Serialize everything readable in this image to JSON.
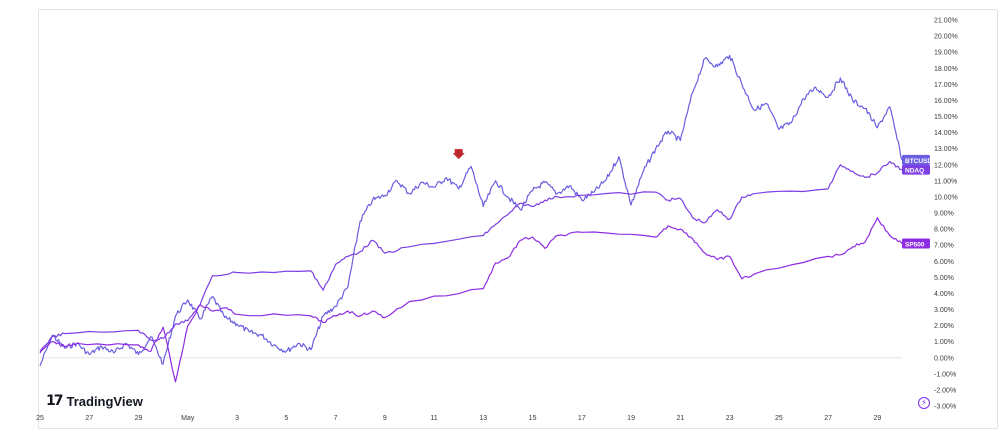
{
  "branding": {
    "logo_mark": "17",
    "logo_text": "TradingView"
  },
  "settings_icon_glyph": "⚡",
  "chart_data": {
    "type": "line",
    "ylim": [
      -3.0,
      21.0
    ],
    "y_ticks": [
      "-3.00%",
      "-2.00%",
      "-1.00%",
      "0.00%",
      "1.00%",
      "2.00%",
      "3.00%",
      "4.00%",
      "5.00%",
      "6.00%",
      "7.00%",
      "8.00%",
      "9.00%",
      "10.00%",
      "11.00%",
      "12.00%",
      "13.00%",
      "14.00%",
      "15.00%",
      "16.00%",
      "17.00%",
      "18.00%",
      "19.00%",
      "20.00%",
      "21.00%"
    ],
    "x_domain": [
      "2024-04-25",
      "2024-05-30"
    ],
    "x_ticks": [
      {
        "date": "2024-04-25",
        "label": "25"
      },
      {
        "date": "2024-04-27",
        "label": "27"
      },
      {
        "date": "2024-04-29",
        "label": "29"
      },
      {
        "date": "2024-05-01",
        "label": "May"
      },
      {
        "date": "2024-05-03",
        "label": "3"
      },
      {
        "date": "2024-05-05",
        "label": "5"
      },
      {
        "date": "2024-05-07",
        "label": "7"
      },
      {
        "date": "2024-05-09",
        "label": "9"
      },
      {
        "date": "2024-05-11",
        "label": "11"
      },
      {
        "date": "2024-05-13",
        "label": "13"
      },
      {
        "date": "2024-05-15",
        "label": "15"
      },
      {
        "date": "2024-05-17",
        "label": "17"
      },
      {
        "date": "2024-05-19",
        "label": "19"
      },
      {
        "date": "2024-05-21",
        "label": "21"
      },
      {
        "date": "2024-05-23",
        "label": "23"
      },
      {
        "date": "2024-05-25",
        "label": "25"
      },
      {
        "date": "2024-05-27",
        "label": "27"
      },
      {
        "date": "2024-05-29",
        "label": "29"
      }
    ],
    "zero_line": 0.0,
    "marker": {
      "date": "2024-05-12",
      "value": 12.6,
      "color": "#c0262d"
    },
    "series": [
      {
        "name": "BTCUSD",
        "color": "#6a5fe0",
        "last_value": 12.3,
        "points": [
          [
            "2024-04-25",
            -0.5
          ],
          [
            "2024-04-25T12:00",
            1.4
          ],
          [
            "2024-04-26",
            0.6
          ],
          [
            "2024-04-26T12:00",
            0.9
          ],
          [
            "2024-04-27",
            0.2
          ],
          [
            "2024-04-27T12:00",
            0.7
          ],
          [
            "2024-04-28",
            0.3
          ],
          [
            "2024-04-28T12:00",
            0.9
          ],
          [
            "2024-04-29",
            0.2
          ],
          [
            "2024-04-29T12:00",
            1.3
          ],
          [
            "2024-04-30",
            -0.4
          ],
          [
            "2024-04-30T12:00",
            2.6
          ],
          [
            "2024-05-01",
            3.6
          ],
          [
            "2024-05-01T12:00",
            2.4
          ],
          [
            "2024-05-02",
            3.8
          ],
          [
            "2024-05-02T12:00",
            2.5
          ],
          [
            "2024-05-03",
            2.1
          ],
          [
            "2024-05-03T12:00",
            1.6
          ],
          [
            "2024-05-04",
            1.4
          ],
          [
            "2024-05-04T12:00",
            0.8
          ],
          [
            "2024-05-05",
            0.4
          ],
          [
            "2024-05-05T12:00",
            0.9
          ],
          [
            "2024-05-06",
            0.5
          ],
          [
            "2024-05-06T12:00",
            2.6
          ],
          [
            "2024-05-07",
            3.2
          ],
          [
            "2024-05-07T12:00",
            4.4
          ],
          [
            "2024-05-08",
            8.5
          ],
          [
            "2024-05-08T12:00",
            9.8
          ],
          [
            "2024-05-09",
            10.1
          ],
          [
            "2024-05-09T12:00",
            11.0
          ],
          [
            "2024-05-10",
            10.2
          ],
          [
            "2024-05-10T12:00",
            10.9
          ],
          [
            "2024-05-11",
            10.6
          ],
          [
            "2024-05-11T12:00",
            11.2
          ],
          [
            "2024-05-12",
            10.5
          ],
          [
            "2024-05-12T12:00",
            11.9
          ],
          [
            "2024-05-13",
            9.4
          ],
          [
            "2024-05-13T12:00",
            11.0
          ],
          [
            "2024-05-14",
            10.0
          ],
          [
            "2024-05-14T12:00",
            9.2
          ],
          [
            "2024-05-15",
            10.4
          ],
          [
            "2024-05-15T12:00",
            10.9
          ],
          [
            "2024-05-16",
            10.2
          ],
          [
            "2024-05-16T12:00",
            10.7
          ],
          [
            "2024-05-17",
            9.8
          ],
          [
            "2024-05-17T12:00",
            10.3
          ],
          [
            "2024-05-18",
            11.1
          ],
          [
            "2024-05-18T12:00",
            12.5
          ],
          [
            "2024-05-19",
            9.5
          ],
          [
            "2024-05-19T12:00",
            11.6
          ],
          [
            "2024-05-20",
            13.0
          ],
          [
            "2024-05-20T12:00",
            14.1
          ],
          [
            "2024-05-21",
            13.5
          ],
          [
            "2024-05-21T12:00",
            16.5
          ],
          [
            "2024-05-22",
            18.6
          ],
          [
            "2024-05-22T12:00",
            18.1
          ],
          [
            "2024-05-23",
            18.8
          ],
          [
            "2024-05-23T12:00",
            17.0
          ],
          [
            "2024-05-24",
            15.4
          ],
          [
            "2024-05-24T12:00",
            15.8
          ],
          [
            "2024-05-25",
            14.2
          ],
          [
            "2024-05-25T12:00",
            14.6
          ],
          [
            "2024-05-26",
            16.1
          ],
          [
            "2024-05-26T12:00",
            16.8
          ],
          [
            "2024-05-27",
            16.2
          ],
          [
            "2024-05-27T12:00",
            17.4
          ],
          [
            "2024-05-28",
            16.0
          ],
          [
            "2024-05-28T12:00",
            15.5
          ],
          [
            "2024-05-29",
            14.3
          ],
          [
            "2024-05-29T12:00",
            15.6
          ],
          [
            "2024-05-30",
            12.3
          ]
        ]
      },
      {
        "name": "NDAQ",
        "color": "#7b3fe4",
        "last_value": 11.7,
        "points": [
          [
            "2024-04-25",
            0.4
          ],
          [
            "2024-04-25T12:00",
            1.3
          ],
          [
            "2024-04-26",
            1.5
          ],
          [
            "2024-04-29",
            1.7
          ],
          [
            "2024-04-29T12:00",
            1.1
          ],
          [
            "2024-04-30",
            1.2
          ],
          [
            "2024-04-30T12:00",
            2.1
          ],
          [
            "2024-05-01",
            2.3
          ],
          [
            "2024-05-01T12:00",
            3.3
          ],
          [
            "2024-05-02",
            5.1
          ],
          [
            "2024-05-03",
            5.3
          ],
          [
            "2024-05-06",
            5.4
          ],
          [
            "2024-05-06T12:00",
            4.2
          ],
          [
            "2024-05-07",
            5.8
          ],
          [
            "2024-05-07T12:00",
            6.3
          ],
          [
            "2024-05-08",
            6.6
          ],
          [
            "2024-05-08T12:00",
            7.3
          ],
          [
            "2024-05-09",
            6.5
          ],
          [
            "2024-05-10",
            6.9
          ],
          [
            "2024-05-13",
            7.6
          ],
          [
            "2024-05-13T12:00",
            8.3
          ],
          [
            "2024-05-14",
            8.9
          ],
          [
            "2024-05-14T12:00",
            9.6
          ],
          [
            "2024-05-15",
            9.4
          ],
          [
            "2024-05-15T12:00",
            9.8
          ],
          [
            "2024-05-16",
            10.0
          ],
          [
            "2024-05-17",
            10.1
          ],
          [
            "2024-05-20",
            10.3
          ],
          [
            "2024-05-20T12:00",
            9.8
          ],
          [
            "2024-05-21",
            9.9
          ],
          [
            "2024-05-21T12:00",
            8.7
          ],
          [
            "2024-05-22",
            8.4
          ],
          [
            "2024-05-22T12:00",
            9.2
          ],
          [
            "2024-05-23",
            8.6
          ],
          [
            "2024-05-23T12:00",
            10.0
          ],
          [
            "2024-05-24",
            10.2
          ],
          [
            "2024-05-27",
            10.5
          ],
          [
            "2024-05-27T12:00",
            12.0
          ],
          [
            "2024-05-28",
            11.6
          ],
          [
            "2024-05-28T12:00",
            11.2
          ],
          [
            "2024-05-29",
            11.5
          ],
          [
            "2024-05-29T12:00",
            12.2
          ],
          [
            "2024-05-30",
            11.7
          ]
        ]
      },
      {
        "name": "SP500",
        "color": "#8e2ce4",
        "last_value": 7.1,
        "points": [
          [
            "2024-04-25",
            0.3
          ],
          [
            "2024-04-25T12:00",
            1.0
          ],
          [
            "2024-04-26",
            0.7
          ],
          [
            "2024-04-26T12:00",
            0.9
          ],
          [
            "2024-04-29",
            0.8
          ],
          [
            "2024-04-29T12:00",
            0.4
          ],
          [
            "2024-04-30",
            1.9
          ],
          [
            "2024-04-30T12:00",
            -1.5
          ],
          [
            "2024-05-01",
            2.0
          ],
          [
            "2024-05-01T12:00",
            3.3
          ],
          [
            "2024-05-02",
            2.9
          ],
          [
            "2024-05-02T12:00",
            3.1
          ],
          [
            "2024-05-03",
            2.7
          ],
          [
            "2024-05-06",
            2.6
          ],
          [
            "2024-05-06T12:00",
            2.2
          ],
          [
            "2024-05-07",
            2.6
          ],
          [
            "2024-05-07T12:00",
            2.9
          ],
          [
            "2024-05-08",
            2.6
          ],
          [
            "2024-05-08T12:00",
            2.9
          ],
          [
            "2024-05-09",
            2.5
          ],
          [
            "2024-05-10",
            3.5
          ],
          [
            "2024-05-13",
            4.3
          ],
          [
            "2024-05-13T12:00",
            5.9
          ],
          [
            "2024-05-14",
            6.2
          ],
          [
            "2024-05-14T12:00",
            7.3
          ],
          [
            "2024-05-15",
            7.5
          ],
          [
            "2024-05-15T12:00",
            6.8
          ],
          [
            "2024-05-16",
            7.6
          ],
          [
            "2024-05-17",
            7.8
          ],
          [
            "2024-05-20",
            7.5
          ],
          [
            "2024-05-20T12:00",
            8.2
          ],
          [
            "2024-05-21",
            8.0
          ],
          [
            "2024-05-21T12:00",
            7.4
          ],
          [
            "2024-05-22",
            6.5
          ],
          [
            "2024-05-22T12:00",
            6.1
          ],
          [
            "2024-05-23",
            6.3
          ],
          [
            "2024-05-23T12:00",
            4.9
          ],
          [
            "2024-05-24",
            5.2
          ],
          [
            "2024-05-27",
            6.3
          ],
          [
            "2024-05-27T12:00",
            6.4
          ],
          [
            "2024-05-28",
            6.9
          ],
          [
            "2024-05-28T12:00",
            7.2
          ],
          [
            "2024-05-29",
            8.7
          ],
          [
            "2024-05-29T12:00",
            7.6
          ],
          [
            "2024-05-30",
            7.1
          ]
        ]
      }
    ]
  }
}
